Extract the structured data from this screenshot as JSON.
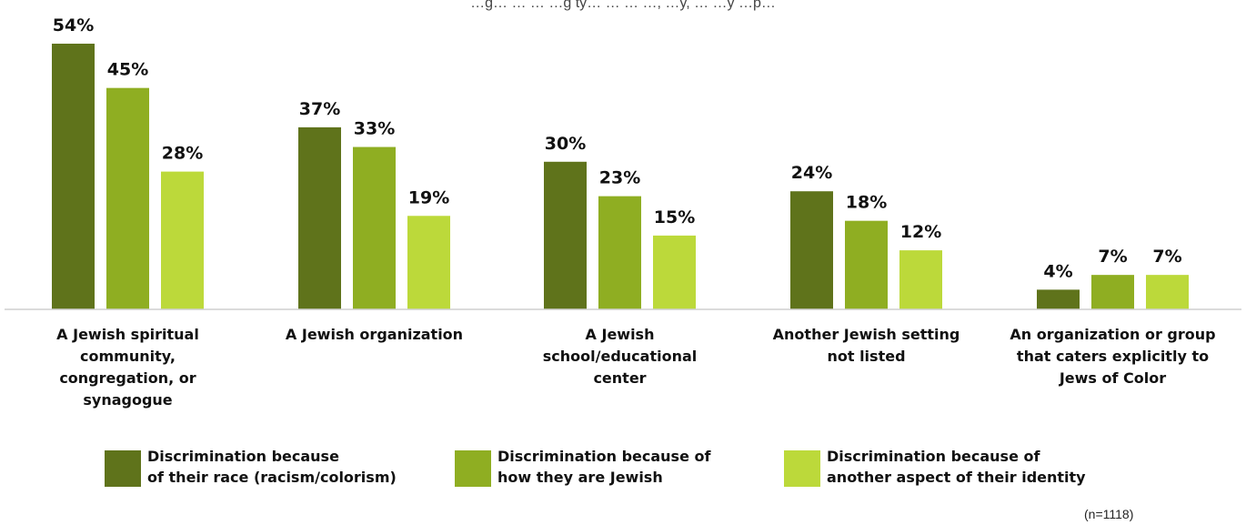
{
  "chart_data": {
    "type": "bar",
    "title": "…g… … … …g ty… … … …, …y, … …y …p…",
    "categories": [
      [
        "A Jewish spiritual",
        "community,",
        "congregation, or",
        "synagogue"
      ],
      [
        "A Jewish organization"
      ],
      [
        "A Jewish",
        "school/educational",
        "center"
      ],
      [
        "Another Jewish setting",
        "not listed"
      ],
      [
        "An organization or group",
        "that caters explicitly to",
        "Jews of Color"
      ]
    ],
    "series": [
      {
        "name": [
          "Discrimination because",
          "of their race (racism/colorism)"
        ],
        "color": "#5f731b",
        "values": [
          54,
          37,
          30,
          24,
          4
        ]
      },
      {
        "name": [
          "Discrimination because of",
          "how they are Jewish"
        ],
        "color": "#8fae22",
        "values": [
          45,
          33,
          23,
          18,
          7
        ]
      },
      {
        "name": [
          "Discrimination because of",
          "another aspect of their identity"
        ],
        "color": "#bcd93a",
        "values": [
          28,
          19,
          15,
          12,
          7
        ]
      }
    ],
    "value_suffix": "%",
    "ylim": [
      0,
      54
    ],
    "grid": false,
    "legend_position": "bottom",
    "note": "(n=1118)"
  }
}
